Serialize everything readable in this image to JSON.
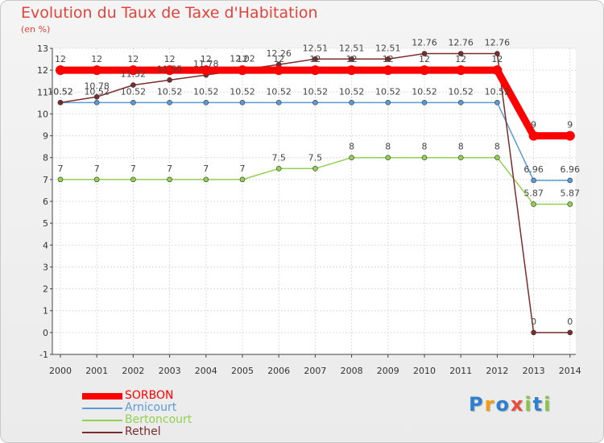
{
  "header": {
    "title": "Evolution du Taux de Taxe d'Habitation",
    "unit": "(en %)"
  },
  "logo": {
    "text": "Proxiti"
  },
  "colors": {
    "title": "#e0443c",
    "SORBON": "#ff0000",
    "Arnicourt": "#5b9bd5",
    "Bertoncourt": "#92d050",
    "Rethel": "#7b2c2c"
  },
  "chart_data": {
    "type": "line",
    "title": "Evolution du Taux de Taxe d'Habitation",
    "ylabel": "(en %)",
    "xlabel": "",
    "ylim": [
      -1,
      13
    ],
    "yticks": [
      "-1",
      "0",
      "1",
      "2",
      "3",
      "4",
      "5",
      "6",
      "7",
      "8",
      "9",
      "10",
      "11",
      "12",
      "13"
    ],
    "categories": [
      "2000",
      "2001",
      "2002",
      "2003",
      "2004",
      "2005",
      "2006",
      "2007",
      "2008",
      "2009",
      "2010",
      "2011",
      "2012",
      "2013",
      "2014"
    ],
    "series": [
      {
        "name": "SORBON",
        "values": [
          12,
          12,
          12,
          12,
          12,
          12,
          12,
          12,
          12,
          12,
          12,
          12,
          12,
          9,
          9
        ],
        "labels": [
          "12",
          "12",
          "12",
          "12",
          "12",
          "12",
          "12",
          "12",
          "12",
          "12",
          "12",
          "12",
          "12",
          "9",
          "9"
        ]
      },
      {
        "name": "Arnicourt",
        "values": [
          10.52,
          10.52,
          10.52,
          10.52,
          10.52,
          10.52,
          10.52,
          10.52,
          10.52,
          10.52,
          10.52,
          10.52,
          10.52,
          6.96,
          6.96
        ],
        "labels": [
          "10.52",
          "10.52",
          "10.52",
          "10.52",
          "10.52",
          "10.52",
          "10.52",
          "10.52",
          "10.52",
          "10.52",
          "10.52",
          "10.52",
          "10.52",
          "6.96",
          "6.96"
        ]
      },
      {
        "name": "Bertoncourt",
        "values": [
          7,
          7,
          7,
          7,
          7,
          7,
          7.5,
          7.5,
          8,
          8,
          8,
          8,
          8,
          5.87,
          5.87
        ],
        "labels": [
          "7",
          "7",
          "7",
          "7",
          "7",
          "7",
          "7.5",
          "7.5",
          "8",
          "8",
          "8",
          "8",
          "8",
          "5.87",
          "5.87"
        ]
      },
      {
        "name": "Rethel",
        "values": [
          10.52,
          10.78,
          11.32,
          11.55,
          11.78,
          12.02,
          12.26,
          12.51,
          12.51,
          12.51,
          12.76,
          12.76,
          12.76,
          0,
          0
        ],
        "labels": [
          "10.52",
          "10.78",
          "11.32",
          "11.55",
          "11.78",
          "12.02",
          "12.26",
          "12.51",
          "12.51",
          "12.51",
          "12.76",
          "12.76",
          "12.76",
          "0",
          "0"
        ]
      }
    ],
    "legend_position": "bottom-left"
  }
}
